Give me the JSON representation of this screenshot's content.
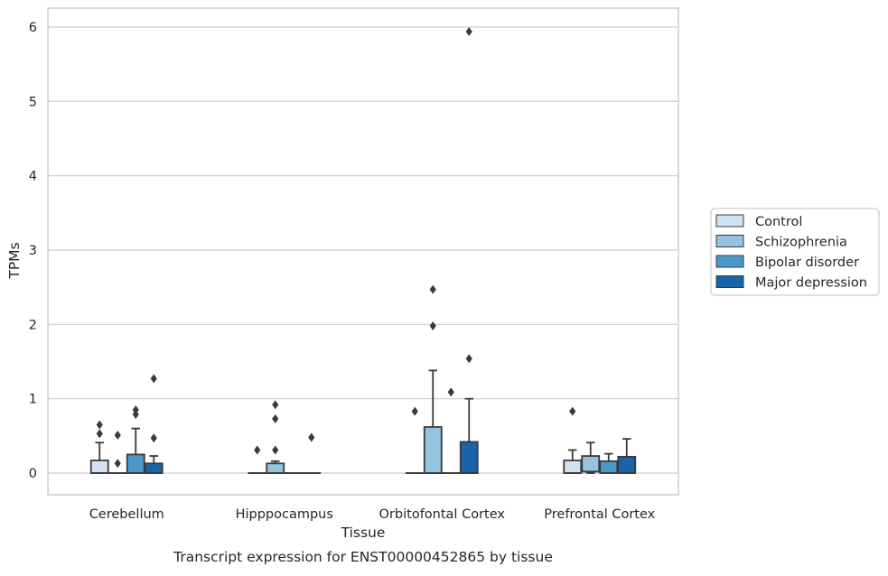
{
  "chart_data": {
    "type": "box",
    "xlabel": "Tissue",
    "ylabel": "TPMs",
    "caption": "Transcript expression for ENST00000452865 by tissue",
    "ylim": [
      -0.3,
      6.25
    ],
    "yticks": [
      0,
      1,
      2,
      3,
      4,
      5,
      6
    ],
    "grid": "horizontal",
    "legend_position": "right",
    "categories": [
      "Cerebellum",
      "Hipppocampus",
      "Orbitofontal Cortex",
      "Prefrontal Cortex"
    ],
    "series": [
      {
        "name": "Control",
        "color": "#d0e1f2",
        "boxes": [
          {
            "q1": 0,
            "median": 0,
            "q3": 0.17,
            "whisker_low": 0,
            "whisker_high": 0.41,
            "outliers": [
              0.53,
              0.65
            ]
          },
          {
            "q1": 0,
            "median": 0,
            "q3": 0,
            "whisker_low": 0,
            "whisker_high": 0,
            "outliers": [
              0.31
            ]
          },
          {
            "q1": 0,
            "median": 0,
            "q3": 0,
            "whisker_low": 0,
            "whisker_high": 0,
            "outliers": [
              0.83
            ]
          },
          {
            "q1": 0,
            "median": 0,
            "q3": 0.17,
            "whisker_low": 0,
            "whisker_high": 0.31,
            "outliers": [
              0.83
            ]
          }
        ]
      },
      {
        "name": "Schizophrenia",
        "color": "#94c4df",
        "boxes": [
          {
            "q1": 0,
            "median": 0,
            "q3": 0,
            "whisker_low": 0,
            "whisker_high": 0,
            "outliers": [
              0.13,
              0.51
            ]
          },
          {
            "q1": 0,
            "median": 0,
            "q3": 0.13,
            "whisker_low": 0,
            "whisker_high": 0.16,
            "outliers": [
              0.31,
              0.73,
              0.92
            ]
          },
          {
            "q1": 0,
            "median": 0,
            "q3": 0.62,
            "whisker_low": 0,
            "whisker_high": 1.38,
            "outliers": [
              1.98,
              2.47
            ]
          },
          {
            "q1": 0.02,
            "median": 0.02,
            "q3": 0.23,
            "whisker_low": 0,
            "whisker_high": 0.41,
            "outliers": []
          }
        ]
      },
      {
        "name": "Bipolar disorder",
        "color": "#4a98c9",
        "boxes": [
          {
            "q1": 0,
            "median": 0,
            "q3": 0.25,
            "whisker_low": 0,
            "whisker_high": 0.6,
            "outliers": [
              0.79,
              0.85
            ]
          },
          {
            "q1": 0,
            "median": 0,
            "q3": 0,
            "whisker_low": 0,
            "whisker_high": 0,
            "outliers": []
          },
          {
            "q1": 0,
            "median": 0,
            "q3": 0,
            "whisker_low": 0,
            "whisker_high": 0,
            "outliers": [
              1.09
            ]
          },
          {
            "q1": 0,
            "median": 0,
            "q3": 0.16,
            "whisker_low": 0,
            "whisker_high": 0.26,
            "outliers": []
          }
        ]
      },
      {
        "name": "Major depression",
        "color": "#1764ab",
        "boxes": [
          {
            "q1": 0,
            "median": 0,
            "q3": 0.13,
            "whisker_low": 0,
            "whisker_high": 0.23,
            "outliers": [
              0.47,
              1.27
            ]
          },
          {
            "q1": 0,
            "median": 0,
            "q3": 0,
            "whisker_low": 0,
            "whisker_high": 0,
            "outliers": [
              0.48
            ]
          },
          {
            "q1": 0,
            "median": 0,
            "q3": 0.42,
            "whisker_low": 0,
            "whisker_high": 1.0,
            "outliers": [
              1.54,
              5.94
            ]
          },
          {
            "q1": 0,
            "median": 0,
            "q3": 0.22,
            "whisker_low": 0,
            "whisker_high": 0.46,
            "outliers": []
          }
        ]
      }
    ]
  }
}
